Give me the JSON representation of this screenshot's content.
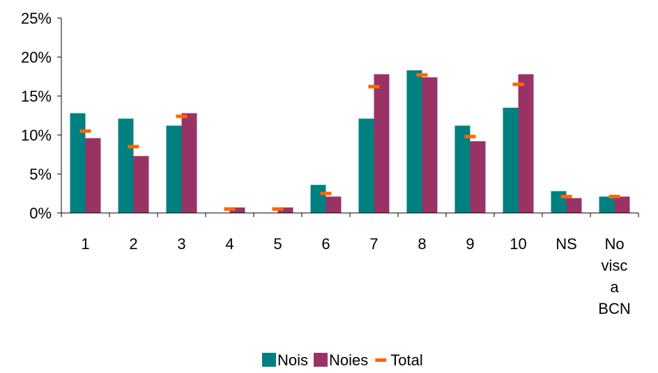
{
  "chart_data": {
    "type": "bar",
    "categories": [
      "1",
      "2",
      "3",
      "4",
      "5",
      "6",
      "7",
      "8",
      "9",
      "10",
      "NS",
      "No visc a BCN"
    ],
    "category_lines": [
      [
        "1"
      ],
      [
        "2"
      ],
      [
        "3"
      ],
      [
        "4"
      ],
      [
        "5"
      ],
      [
        "6"
      ],
      [
        "7"
      ],
      [
        "8"
      ],
      [
        "9"
      ],
      [
        "10"
      ],
      [
        "NS"
      ],
      [
        "No",
        "visc",
        "a",
        "BCN"
      ]
    ],
    "series": [
      {
        "name": "Nois",
        "kind": "bar",
        "color": "#008080",
        "values": [
          12.8,
          12.1,
          11.2,
          0.0,
          0.0,
          3.6,
          12.1,
          18.3,
          11.2,
          13.5,
          2.8,
          2.1
        ]
      },
      {
        "name": "Noies",
        "kind": "bar",
        "color": "#993366",
        "values": [
          9.6,
          7.3,
          12.8,
          0.7,
          0.7,
          2.1,
          17.8,
          17.4,
          9.2,
          17.8,
          1.9,
          2.1
        ]
      },
      {
        "name": "Total",
        "kind": "marker",
        "color": "#FF6600",
        "values": [
          10.5,
          8.5,
          12.4,
          0.5,
          0.5,
          2.5,
          16.2,
          17.7,
          9.8,
          16.5,
          2.1,
          2.1
        ]
      }
    ],
    "yticks": [
      "0%",
      "5%",
      "10%",
      "15%",
      "20%",
      "25%"
    ],
    "ylim": [
      0,
      25
    ],
    "xlabel": "",
    "ylabel": "",
    "legend": "bottom",
    "grid": false
  }
}
